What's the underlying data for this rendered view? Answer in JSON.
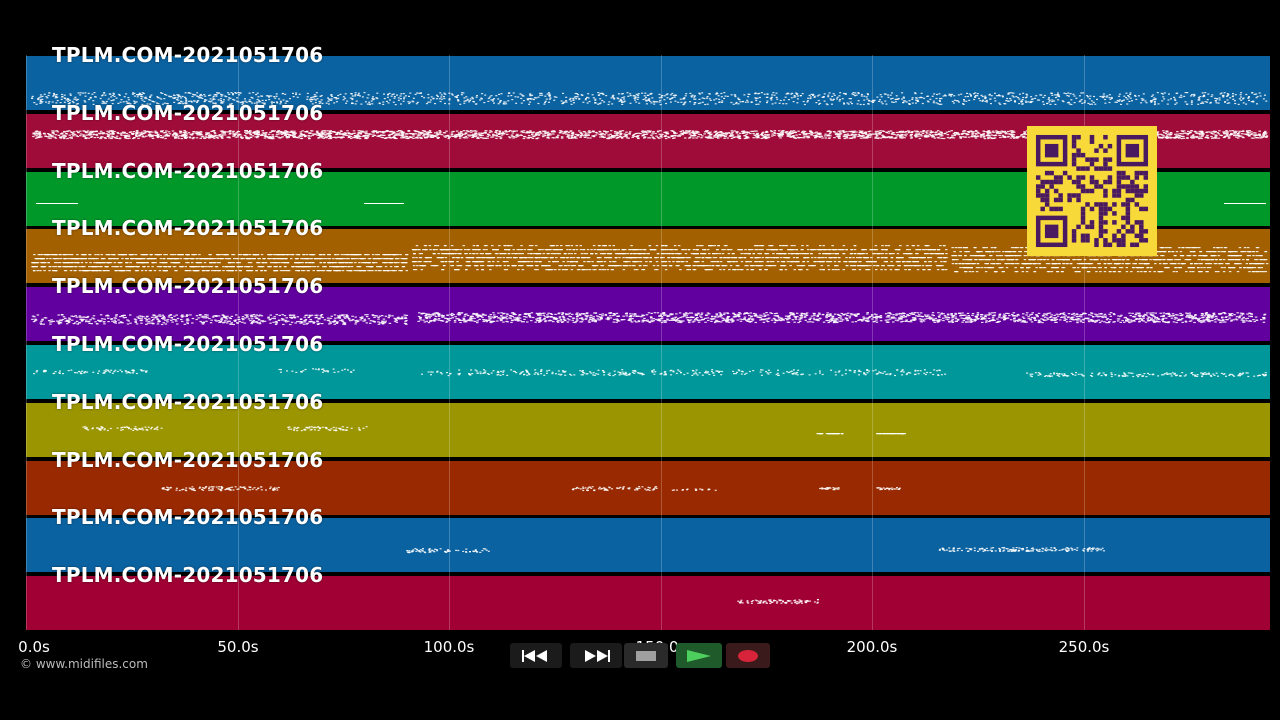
{
  "track_label": "TPLM.COM-2021051706",
  "tracks": [
    {
      "name": "TPLM.COM-2021051706",
      "color": "#0b62a0"
    },
    {
      "name": "TPLM.COM-2021051706",
      "color": "#a00c3a"
    },
    {
      "name": "TPLM.COM-2021051706",
      "color": "#01982a"
    },
    {
      "name": "TPLM.COM-2021051706",
      "color": "#a26000"
    },
    {
      "name": "TPLM.COM-2021051706",
      "color": "#61009e"
    },
    {
      "name": "TPLM.COM-2021051706",
      "color": "#00979a"
    },
    {
      "name": "TPLM.COM-2021051706",
      "color": "#9a9500"
    },
    {
      "name": "TPLM.COM-2021051706",
      "color": "#992900"
    },
    {
      "name": "TPLM.COM-2021051706",
      "color": "#0b62a0"
    },
    {
      "name": "TPLM.COM-2021051706",
      "color": "#a00034"
    }
  ],
  "timeline": {
    "ticks": [
      "0.0s",
      "50.0s",
      "100.0s",
      "150.0s",
      "200.0s",
      "250.0s"
    ],
    "tick_values": [
      0,
      50,
      100,
      150,
      200,
      250
    ],
    "range": [
      0,
      294
    ]
  },
  "copyright": "© www.midifiles.com",
  "transport": {
    "rewind": "rewind-icon",
    "fast_forward": "fast-forward-icon",
    "stop": "stop-icon",
    "play": "play-icon",
    "record": "record-icon"
  },
  "overlay": "qr-code"
}
